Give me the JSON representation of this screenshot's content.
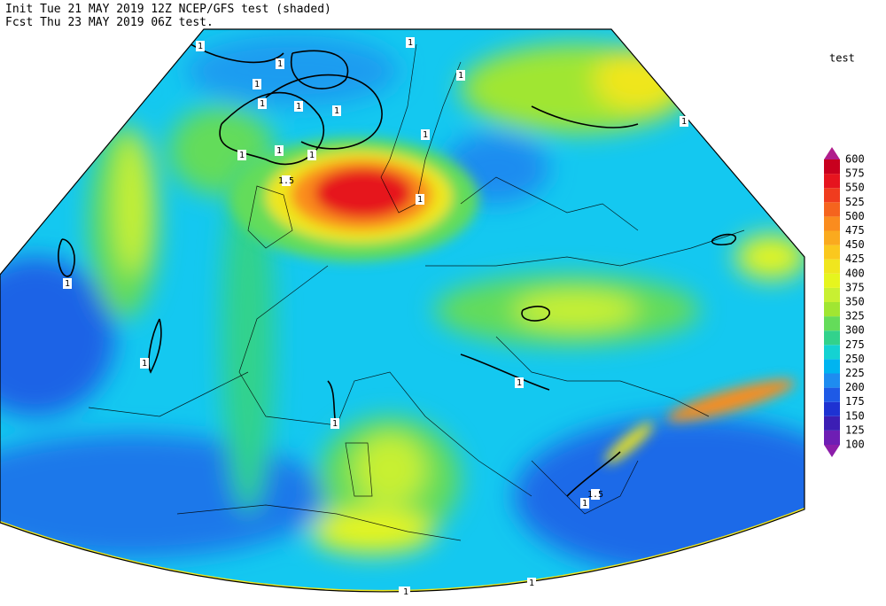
{
  "header": {
    "line1": "Init  Tue 21 MAY 2019 12Z  NCEP/GFS test (shaded)",
    "line2": "Fcst Thu 23 MAY 2019 06Z  test."
  },
  "legend": {
    "title": "test",
    "levels": [
      100,
      125,
      150,
      175,
      200,
      225,
      250,
      275,
      300,
      325,
      350,
      375,
      400,
      425,
      450,
      475,
      500,
      525,
      550,
      575,
      600
    ],
    "colors": [
      "#8c1eaa",
      "#6e1eb4",
      "#3c1eb4",
      "#1e32d2",
      "#1e5ae6",
      "#1e8cf0",
      "#00b4f0",
      "#14d2d2",
      "#32d28c",
      "#64dc5a",
      "#a0e632",
      "#c8f032",
      "#e6f51e",
      "#f0e61e",
      "#fac81e",
      "#faaa1e",
      "#fa8c1e",
      "#f5641e",
      "#f03c1e",
      "#e6141e",
      "#c8001e",
      "#b01e8c"
    ]
  },
  "contour_labels": [
    "1",
    "1",
    "1",
    "1",
    "1",
    "1",
    "1",
    "1",
    "1",
    "1",
    "1",
    "1.5",
    "1",
    "1",
    "1",
    "1",
    "1",
    "1",
    "1",
    "1",
    "1",
    "1",
    "1.5",
    "1"
  ]
}
